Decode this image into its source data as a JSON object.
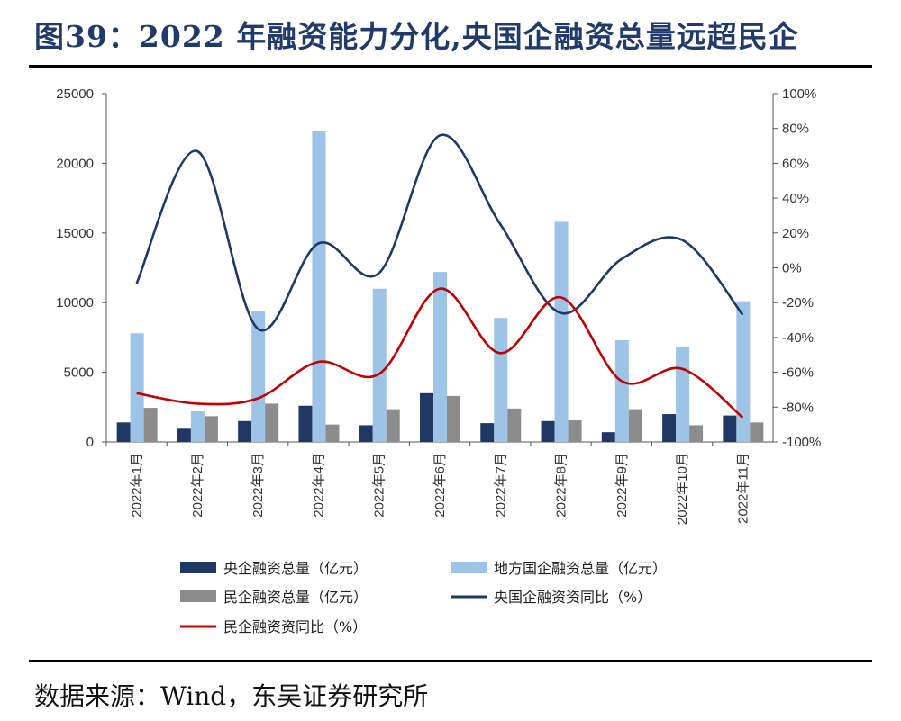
{
  "title": "图39：2022 年融资能力分化,央国企融资总量远超民企",
  "source": "数据来源：Wind，东吴证券研究所",
  "chart_data": {
    "type": "bar",
    "categories": [
      "2022年1月",
      "2022年2月",
      "2022年3月",
      "2022年4月",
      "2022年5月",
      "2022年6月",
      "2022年7月",
      "2022年8月",
      "2022年9月",
      "2022年10月",
      "2022年11月"
    ],
    "left_axis": {
      "min": 0,
      "max": 25000,
      "ticks": [
        "0",
        "5000",
        "10000",
        "15000",
        "20000",
        "25000"
      ]
    },
    "right_axis": {
      "min": -100,
      "max": 100,
      "ticks": [
        "-100%",
        "-80%",
        "-60%",
        "-40%",
        "-20%",
        "0%",
        "20%",
        "40%",
        "60%",
        "80%",
        "100%"
      ]
    },
    "series": [
      {
        "name": "央企融资总量（亿元）",
        "kind": "bar",
        "axis": "left",
        "color": "#1f3864",
        "values": [
          1400,
          950,
          1500,
          2600,
          1200,
          3500,
          1350,
          1500,
          700,
          2000,
          1900
        ]
      },
      {
        "name": "地方国企融资总量（亿元）",
        "kind": "bar",
        "axis": "left",
        "color": "#9dc3e6",
        "values": [
          7800,
          2200,
          9400,
          22300,
          11000,
          12200,
          8900,
          15800,
          7300,
          6800,
          10100
        ]
      },
      {
        "name": "民企融资总量（亿元）",
        "kind": "bar",
        "axis": "left",
        "color": "#8c8c8c",
        "values": [
          2450,
          1850,
          2750,
          1250,
          2350,
          3300,
          2400,
          1550,
          2350,
          1200,
          1400
        ]
      },
      {
        "name": "央国企融资资同比（%）",
        "kind": "line",
        "axis": "right",
        "color": "#1f3864",
        "values": [
          -9,
          67,
          -35,
          14,
          -3,
          76,
          25,
          -26,
          5,
          16,
          -27
        ]
      },
      {
        "name": "民企融资资同比（%）",
        "kind": "line",
        "axis": "right",
        "color": "#c00000",
        "values": [
          -72,
          -78,
          -75,
          -54,
          -61,
          -12,
          -49,
          -17,
          -65,
          -58,
          -86
        ]
      }
    ],
    "legend": [
      "央企融资总量（亿元）",
      "地方国企融资总量（亿元）",
      "民企融资总量（亿元）",
      "央国企融资资同比（%）",
      "民企融资资同比（%）"
    ],
    "legend_position": "bottom"
  }
}
